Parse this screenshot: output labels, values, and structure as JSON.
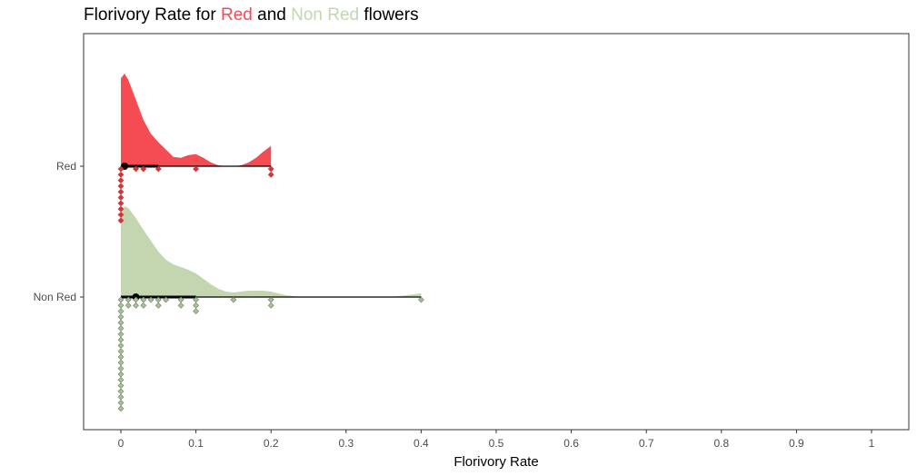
{
  "title": {
    "prefix": "Florivory Rate for ",
    "red_word": "Red",
    "middle": " and ",
    "nonred_word": "Non Red",
    "suffix": " flowers"
  },
  "colors": {
    "red_fill": "#f54b53",
    "red_point": "#d0373d",
    "nonred_fill": "#c4d6b0",
    "nonred_point": "#a9bf98",
    "nonred_point_stroke": "#6e7f64",
    "axis": "#333333",
    "summary": "#000000"
  },
  "chart_data": {
    "type": "raincloud",
    "xlabel": "Florivory Rate",
    "ylabel": "",
    "xlim": [
      0,
      1
    ],
    "x_ticks": [
      "0",
      "0.1",
      "0.2",
      "0.3",
      "0.4",
      "0.5",
      "0.6",
      "0.7",
      "0.8",
      "0.9",
      "1"
    ],
    "categories": [
      "Red",
      "Non Red"
    ],
    "grid": false,
    "series": [
      {
        "name": "Red",
        "density_x": [
          0,
          0.005,
          0.01,
          0.02,
          0.03,
          0.04,
          0.05,
          0.06,
          0.07,
          0.08,
          0.09,
          0.1,
          0.11,
          0.12,
          0.13,
          0.14,
          0.15,
          0.16,
          0.17,
          0.18,
          0.19,
          0.2
        ],
        "density": [
          0.95,
          1.0,
          0.93,
          0.72,
          0.5,
          0.35,
          0.26,
          0.18,
          0.1,
          0.09,
          0.12,
          0.13,
          0.09,
          0.04,
          0.01,
          0.0,
          0.0,
          0.01,
          0.04,
          0.09,
          0.16,
          0.22
        ],
        "points": [
          [
            0,
            0
          ],
          [
            0,
            1
          ],
          [
            0,
            2
          ],
          [
            0,
            3
          ],
          [
            0,
            4
          ],
          [
            0,
            5
          ],
          [
            0,
            6
          ],
          [
            0,
            7
          ],
          [
            0,
            8
          ],
          [
            0,
            9
          ],
          [
            0.02,
            0
          ],
          [
            0.03,
            0
          ],
          [
            0.05,
            0
          ],
          [
            0.1,
            0
          ],
          [
            0.2,
            0
          ],
          [
            0.2,
            1
          ]
        ],
        "summary": {
          "median": 0.005,
          "range": [
            0,
            0.2
          ],
          "interval": [
            0,
            0.05
          ]
        }
      },
      {
        "name": "Non Red",
        "density_x": [
          0,
          0.005,
          0.01,
          0.02,
          0.03,
          0.04,
          0.05,
          0.06,
          0.07,
          0.08,
          0.09,
          0.1,
          0.11,
          0.12,
          0.13,
          0.14,
          0.15,
          0.16,
          0.17,
          0.18,
          0.19,
          0.2,
          0.21,
          0.22,
          0.23,
          0.24,
          0.25,
          0.255,
          0.35,
          0.36,
          0.37,
          0.38,
          0.39,
          0.4
        ],
        "density": [
          0.93,
          1.0,
          0.98,
          0.87,
          0.74,
          0.62,
          0.5,
          0.41,
          0.36,
          0.33,
          0.3,
          0.26,
          0.2,
          0.14,
          0.09,
          0.06,
          0.05,
          0.06,
          0.07,
          0.07,
          0.07,
          0.06,
          0.04,
          0.02,
          0.01,
          0.0,
          0.0,
          0.0,
          0.0,
          0.0,
          0.01,
          0.02,
          0.03,
          0.04
        ],
        "points": [
          [
            0,
            0
          ],
          [
            0,
            1
          ],
          [
            0,
            2
          ],
          [
            0,
            3
          ],
          [
            0,
            4
          ],
          [
            0,
            5
          ],
          [
            0,
            6
          ],
          [
            0,
            7
          ],
          [
            0,
            8
          ],
          [
            0,
            9
          ],
          [
            0,
            10
          ],
          [
            0,
            11
          ],
          [
            0,
            12
          ],
          [
            0,
            13
          ],
          [
            0,
            14
          ],
          [
            0,
            15
          ],
          [
            0,
            16
          ],
          [
            0,
            17
          ],
          [
            0,
            18
          ],
          [
            0,
            19
          ],
          [
            0.01,
            0
          ],
          [
            0.01,
            1
          ],
          [
            0.02,
            0
          ],
          [
            0.02,
            1
          ],
          [
            0.03,
            0
          ],
          [
            0.03,
            1
          ],
          [
            0.04,
            0
          ],
          [
            0.05,
            0
          ],
          [
            0.05,
            1
          ],
          [
            0.06,
            0
          ],
          [
            0.08,
            0
          ],
          [
            0.08,
            1
          ],
          [
            0.1,
            0
          ],
          [
            0.1,
            1
          ],
          [
            0.1,
            2
          ],
          [
            0.15,
            0
          ],
          [
            0.2,
            0
          ],
          [
            0.2,
            1
          ],
          [
            0.4,
            0
          ]
        ],
        "summary": {
          "median": 0.02,
          "range": [
            0,
            0.4
          ],
          "interval": [
            0,
            0.1
          ]
        }
      }
    ]
  }
}
